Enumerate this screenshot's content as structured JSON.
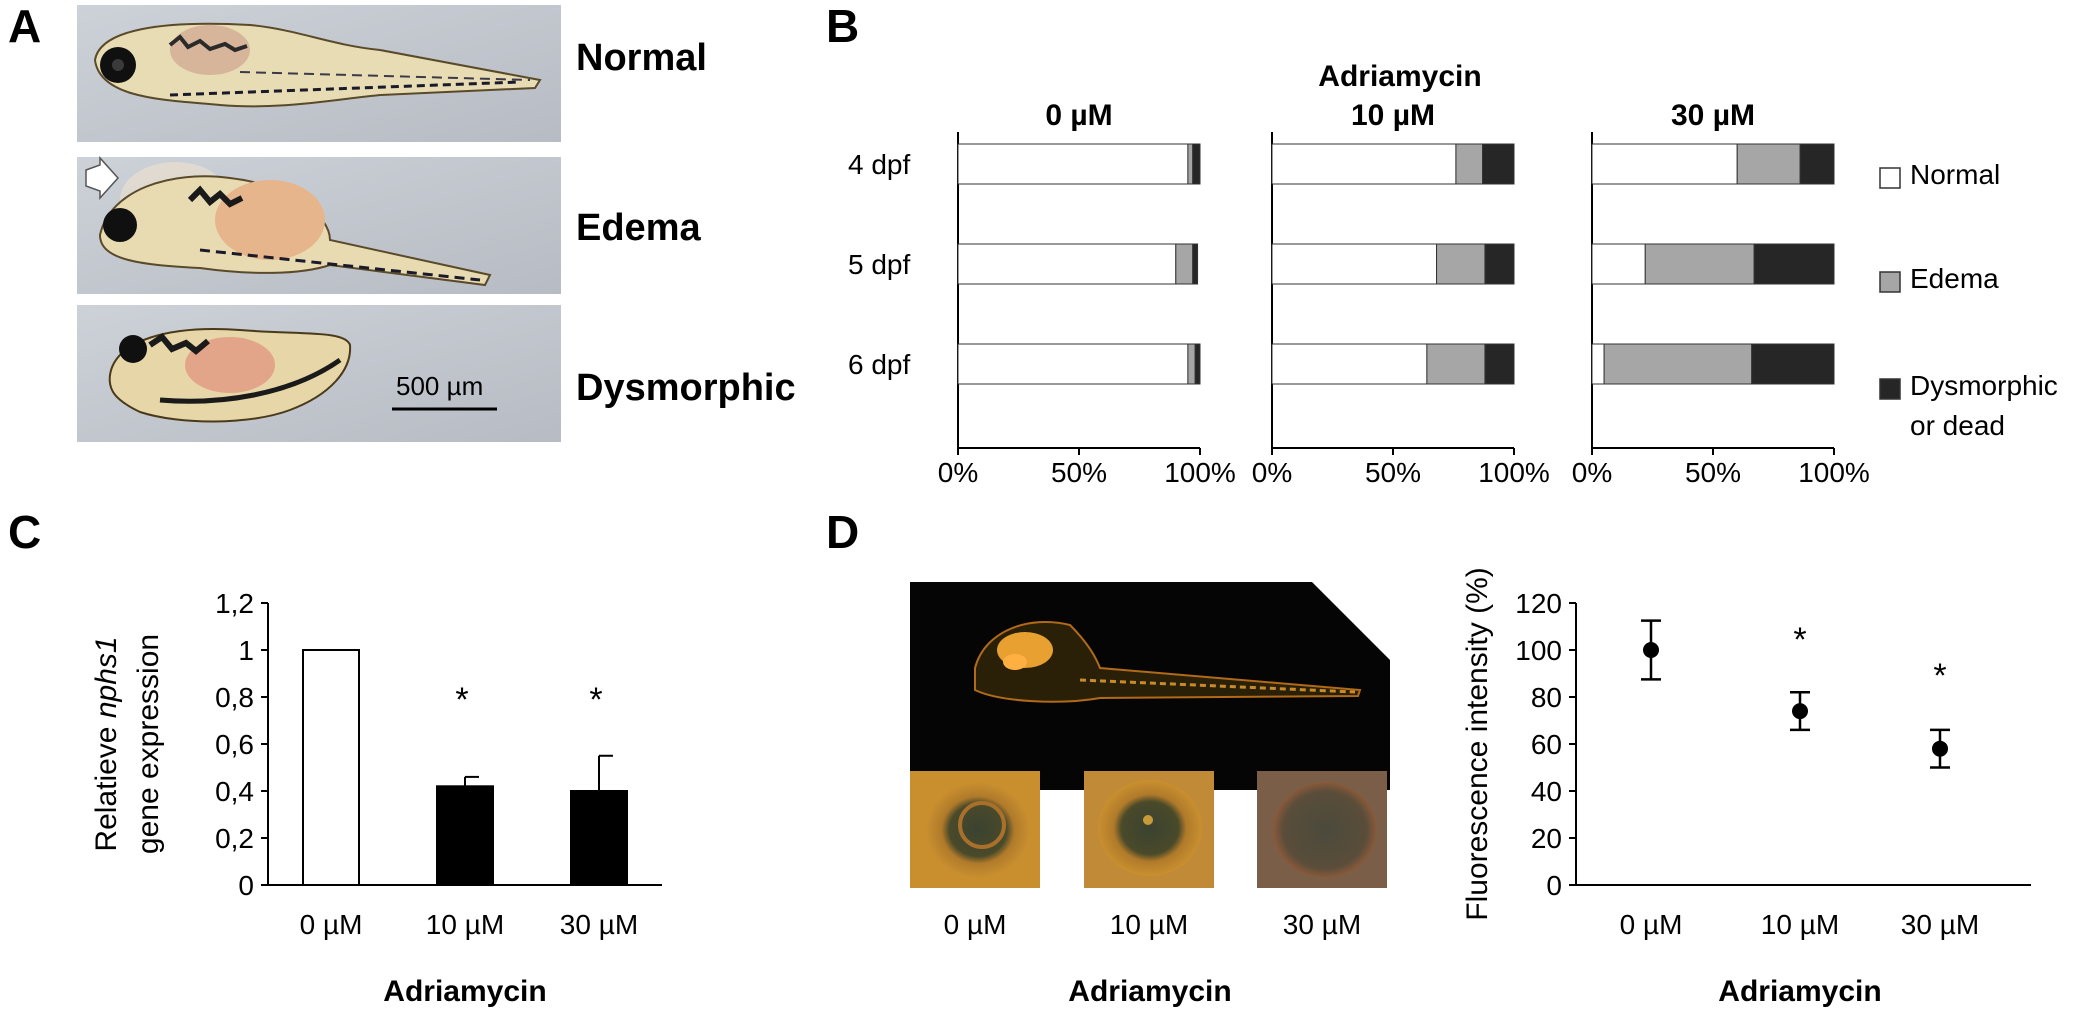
{
  "panels": {
    "A": {
      "letter": "A",
      "rows": [
        {
          "label": "Normal",
          "kind": "normal"
        },
        {
          "label": "Edema",
          "kind": "edema"
        },
        {
          "label": "Dysmorphic",
          "kind": "dysmorphic"
        }
      ],
      "scale_bar": "500 µm"
    },
    "B": {
      "letter": "B"
    },
    "C": {
      "letter": "C"
    },
    "D": {
      "letter": "D",
      "image_labels": [
        "0 µM",
        "10 µM",
        "30 µM"
      ],
      "image_axis_title": "Adriamycin"
    }
  },
  "colors": {
    "normal": "#ffffff",
    "edema": "#a6a6a6",
    "dead": "#262626",
    "bar_black": "#000000"
  },
  "chart_data": [
    {
      "id": "B",
      "type": "bar",
      "orientation": "horizontal",
      "stacked": true,
      "title": "Adriamycin",
      "subcharts": [
        "0 µM",
        "10 µM",
        "30 µM"
      ],
      "categories": [
        "4 dpf",
        "5 dpf",
        "6 dpf"
      ],
      "xlim": [
        0,
        100
      ],
      "xticks": [
        "0%",
        "50%",
        "100%"
      ],
      "legend": [
        "Normal",
        "Edema",
        "Dysmorphic or dead"
      ],
      "legend_position": "right",
      "values": {
        "0 µM": {
          "Normal": [
            95,
            90,
            95
          ],
          "Edema": [
            2,
            7,
            3
          ],
          "Dysmorphic or dead": [
            3,
            2,
            2
          ]
        },
        "10 µM": {
          "Normal": [
            76,
            68,
            64
          ],
          "Edema": [
            11,
            20,
            24
          ],
          "Dysmorphic or dead": [
            13,
            12,
            12
          ]
        },
        "30 µM": {
          "Normal": [
            60,
            22,
            5
          ],
          "Edema": [
            26,
            45,
            61
          ],
          "Dysmorphic or dead": [
            14,
            33,
            34
          ]
        }
      }
    },
    {
      "id": "C",
      "type": "bar",
      "categories": [
        "0 µM",
        "10 µM",
        "30 µM"
      ],
      "values": [
        1,
        0.42,
        0.4
      ],
      "errors": [
        0,
        0.04,
        0.15
      ],
      "significance": [
        "",
        "*",
        "*"
      ],
      "ylim": [
        0,
        1.2
      ],
      "yticks": [
        "0",
        "0,2",
        "0,4",
        "0,6",
        "0,8",
        "1",
        "1,2"
      ],
      "ylabel_line1_a": "Relatieve ",
      "ylabel_line1_b": "nphs1",
      "ylabel_line2": "gene expression",
      "xlabel": "Adriamycin"
    },
    {
      "id": "D",
      "type": "scatter",
      "categories": [
        "0 µM",
        "10 µM",
        "30 µM"
      ],
      "values": [
        100,
        74,
        58
      ],
      "errors": [
        12.5,
        8,
        8
      ],
      "significance": [
        "",
        "*",
        "*"
      ],
      "ylim": [
        0,
        120
      ],
      "yticks": [
        "0",
        "20",
        "40",
        "60",
        "80",
        "100",
        "120"
      ],
      "ylabel": "Fluorescence intensity (%)",
      "xlabel": "Adriamycin"
    }
  ]
}
